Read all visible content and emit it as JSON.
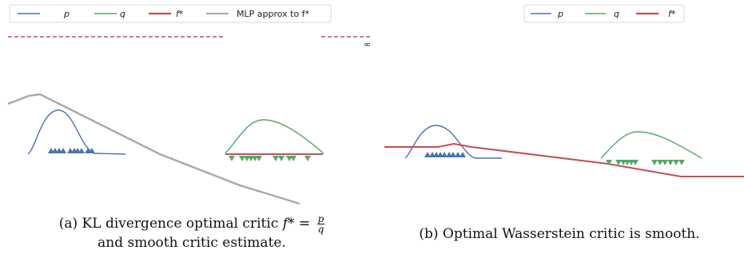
{
  "panel_a": {
    "legend": [
      "p",
      "q",
      "f*",
      "MLP approx to f*"
    ],
    "infinity_label": "∞",
    "caption_line1": "(a) KL divergence optimal critic",
    "caption_math": "f* =",
    "caption_frac_num": "p",
    "caption_frac_den": "q",
    "caption_line2": "and smooth critic estimate."
  },
  "panel_b": {
    "legend": [
      "p",
      "q",
      "f*"
    ],
    "caption": "(b) Optimal Wasserstein critic is smooth."
  },
  "colors": {
    "p": "#4c72b0",
    "q": "#55a868",
    "f_star": "#c44e52",
    "mlp": "#a8a8a8"
  },
  "chart_data": [
    {
      "type": "line",
      "series": [
        {
          "name": "p"
        },
        {
          "name": "q"
        },
        {
          "name": "f*"
        },
        {
          "name": "MLP approx to f*"
        }
      ],
      "annotations": [
        "∞"
      ]
    },
    {
      "type": "line",
      "series": [
        {
          "name": "p"
        },
        {
          "name": "q"
        },
        {
          "name": "f*"
        }
      ]
    }
  ]
}
